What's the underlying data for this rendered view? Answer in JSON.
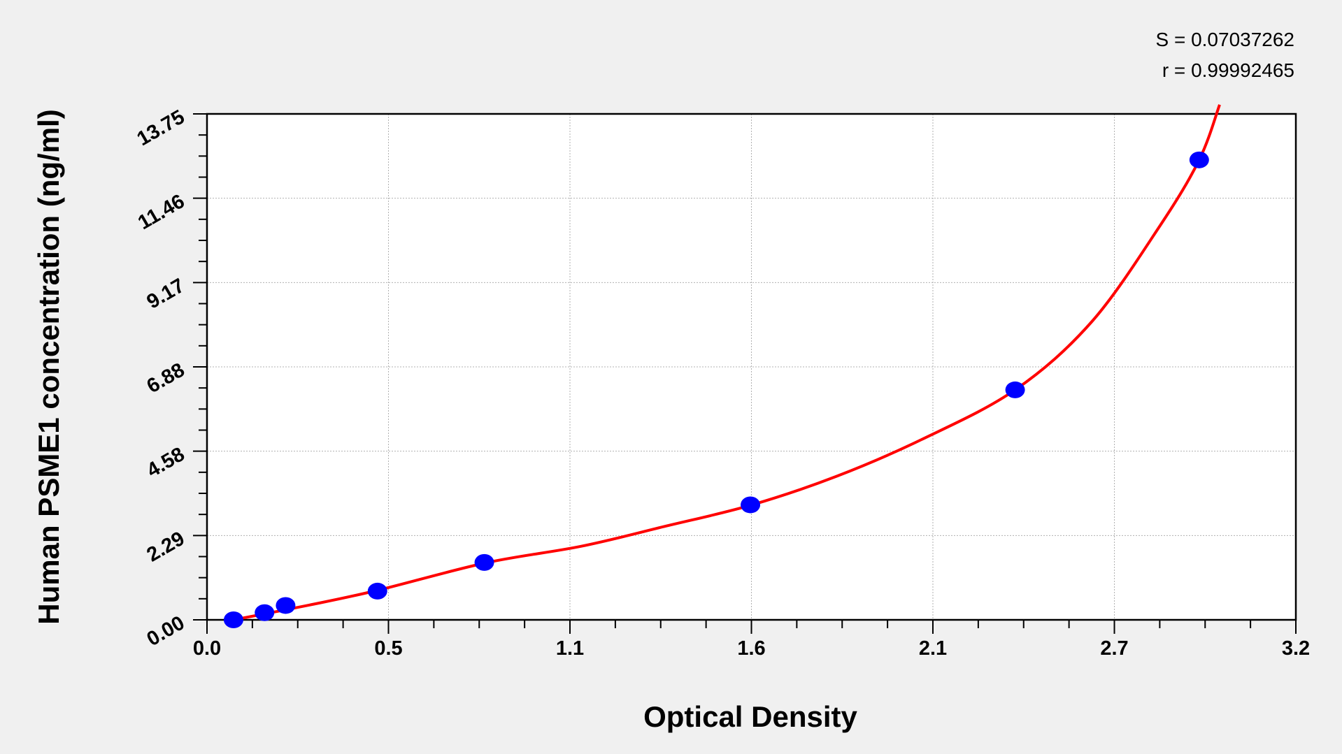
{
  "chart_data": {
    "type": "scatter",
    "xlabel": "Optical Density",
    "ylabel": "Human PSME1 concentration (ng/ml)",
    "xlim": [
      0,
      3.2
    ],
    "ylim": [
      0,
      13.75
    ],
    "x_tick_values": [
      0,
      0.5333,
      1.0667,
      1.6,
      2.1333,
      2.6667,
      3.2
    ],
    "x_tick_labels": [
      "0.0",
      "0.5",
      "1.1",
      "1.6",
      "2.1",
      "2.7",
      "3.2"
    ],
    "y_tick_values": [
      0,
      2.2917,
      4.5833,
      6.875,
      9.1667,
      11.4583,
      13.75
    ],
    "y_tick_labels": [
      "0.00",
      "2.29",
      "4.58",
      "6.88",
      "9.17",
      "11.46",
      "13.75"
    ],
    "grid": true,
    "annotations": [
      "S = 0.07037262",
      "r = 0.99992465"
    ],
    "points": {
      "x": [
        0.078,
        0.169,
        0.231,
        0.501,
        0.815,
        1.597,
        2.375,
        2.916
      ],
      "y": [
        0,
        0.195,
        0.39,
        0.78,
        1.56,
        3.125,
        6.25,
        12.5
      ]
    },
    "fit_curve": {
      "x": [
        0.078,
        0.3,
        0.5,
        0.82,
        1.1,
        1.35,
        1.6,
        1.85,
        2.1,
        2.375,
        2.6,
        2.8,
        2.916,
        2.976
      ],
      "y": [
        0,
        0.4,
        0.8,
        1.55,
        2.0,
        2.55,
        3.12,
        3.9,
        4.9,
        6.25,
        8.1,
        10.7,
        12.5,
        14.0
      ]
    },
    "colors": {
      "points": "#0000ff",
      "curve": "#ff0000",
      "background": "#f0f0f0",
      "plot_area": "#ffffff"
    }
  }
}
